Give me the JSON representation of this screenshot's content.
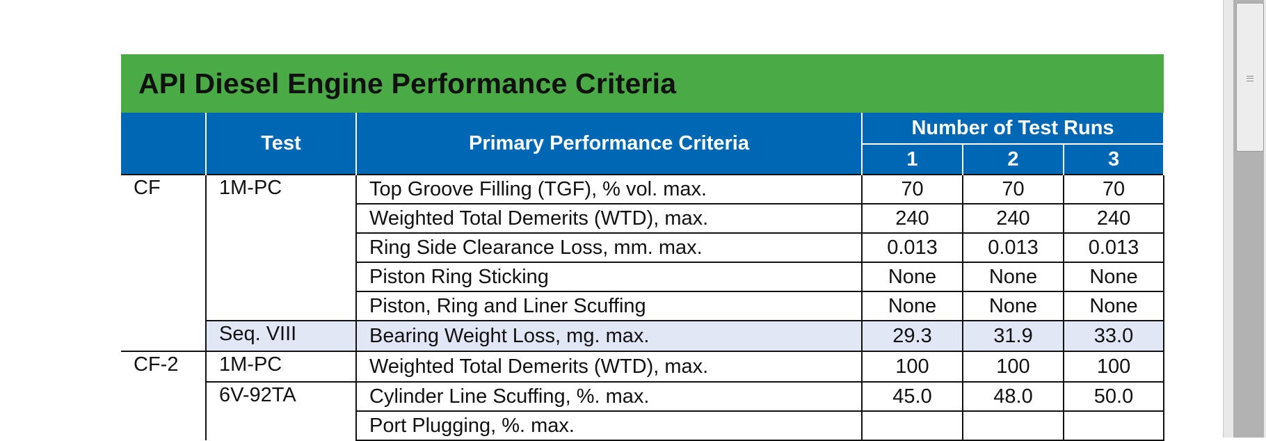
{
  "document": {
    "title": "API Diesel Engine Performance Criteria",
    "headers": {
      "test": "Test",
      "criteria": "Primary Performance Criteria",
      "runs_group": "Number of Test Runs",
      "runs": [
        "1",
        "2",
        "3"
      ]
    },
    "rows": [
      {
        "category": "CF",
        "test": "1M-PC",
        "criterion": "Top Groove Filling (TGF), % vol. max.",
        "values": [
          "70",
          "70",
          "70"
        ]
      },
      {
        "category": "",
        "test": "",
        "criterion": "Weighted Total Demerits (WTD), max.",
        "values": [
          "240",
          "240",
          "240"
        ]
      },
      {
        "category": "",
        "test": "",
        "criterion": "Ring Side Clearance Loss, mm. max.",
        "values": [
          "0.013",
          "0.013",
          "0.013"
        ]
      },
      {
        "category": "",
        "test": "",
        "criterion": "Piston Ring Sticking",
        "values": [
          "None",
          "None",
          "None"
        ]
      },
      {
        "category": "",
        "test": "",
        "criterion": "Piston, Ring and Liner Scuffing",
        "values": [
          "None",
          "None",
          "None"
        ]
      },
      {
        "category": "",
        "test": "Seq. VIII",
        "criterion": "Bearing Weight Loss, mg. max.",
        "values": [
          "29.3",
          "31.9",
          "33.0"
        ]
      },
      {
        "category": "CF-2",
        "test": "1M-PC",
        "criterion": "Weighted Total Demerits (WTD), max.",
        "values": [
          "100",
          "100",
          "100"
        ]
      },
      {
        "category": "",
        "test": "6V-92TA",
        "criterion": "Cylinder Line Scuffing, %. max.",
        "values": [
          "45.0",
          "48.0",
          "50.0"
        ]
      },
      {
        "category": "",
        "test": "",
        "criterion": "Port Plugging, %. max.",
        "values": [
          "",
          "",
          ""
        ]
      }
    ]
  },
  "colors": {
    "title_bar": "#4aaa46",
    "header": "#0067b5",
    "shaded_row": "#e1e7f5"
  }
}
